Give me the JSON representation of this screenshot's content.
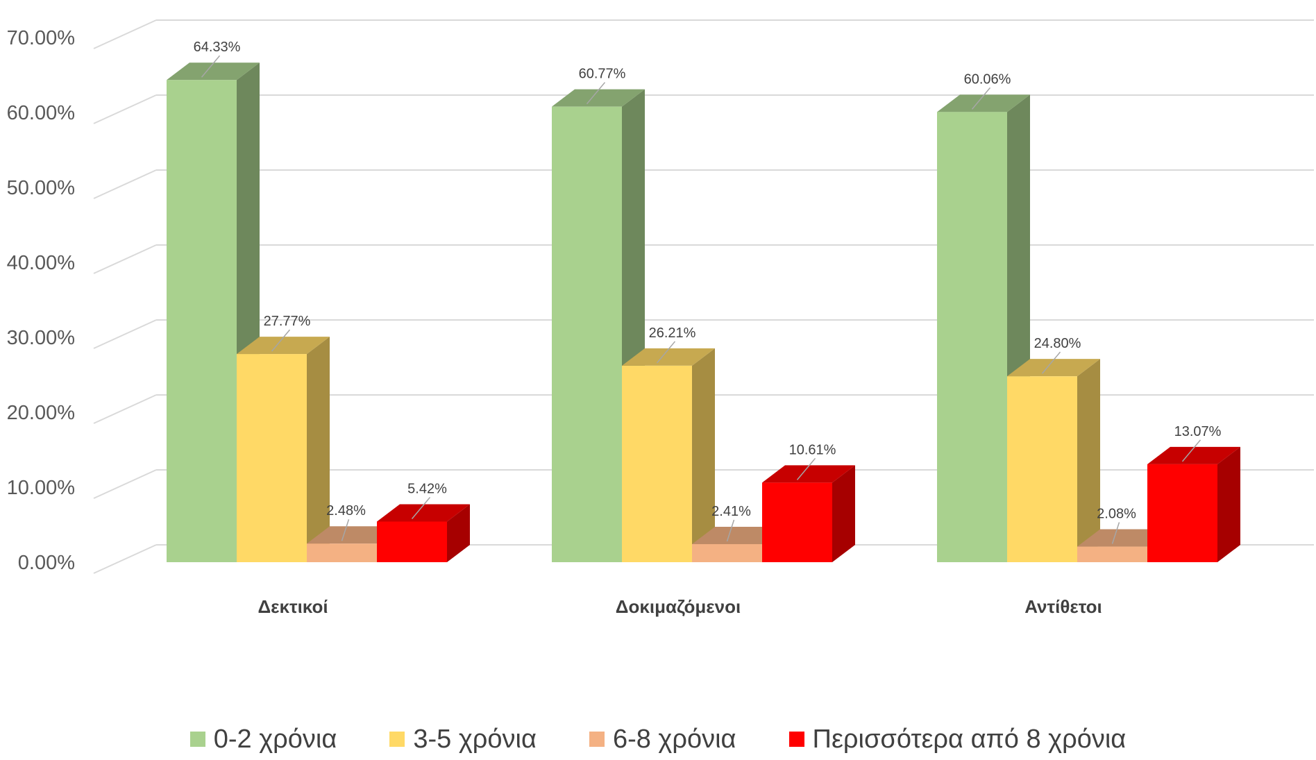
{
  "chart_data": {
    "type": "bar",
    "title": "",
    "xlabel": "",
    "ylabel": "",
    "ylim": [
      0,
      70
    ],
    "yticks": [
      "0.00%",
      "10.00%",
      "20.00%",
      "30.00%",
      "40.00%",
      "50.00%",
      "60.00%",
      "70.00%"
    ],
    "grid": true,
    "legend_position": "bottom",
    "three_d": true,
    "categories": [
      "Δεκτικοί",
      "Δοκιμαζόμενοι",
      "Αντίθετοι"
    ],
    "series": [
      {
        "name": "0-2 χρόνια",
        "color": "#A9D18E",
        "values": [
          64.33,
          60.77,
          60.06
        ],
        "labels": [
          "64.33%",
          "60.77%",
          "60.06%"
        ]
      },
      {
        "name": "3-5 χρόνια",
        "color": "#FFD966",
        "values": [
          27.77,
          26.21,
          24.8
        ],
        "labels": [
          "27.77%",
          "26.21%",
          "24.80%"
        ]
      },
      {
        "name": "6-8 χρόνια",
        "color": "#F4B183",
        "values": [
          2.48,
          2.41,
          2.08
        ],
        "labels": [
          "2.48%",
          "2.41%",
          "2.08%"
        ]
      },
      {
        "name": "Περισσότερα από 8 χρόνια",
        "color": "#FF0000",
        "values": [
          5.42,
          10.61,
          13.07
        ],
        "labels": [
          "5.42%",
          "10.61%",
          "13.07%"
        ]
      }
    ]
  }
}
